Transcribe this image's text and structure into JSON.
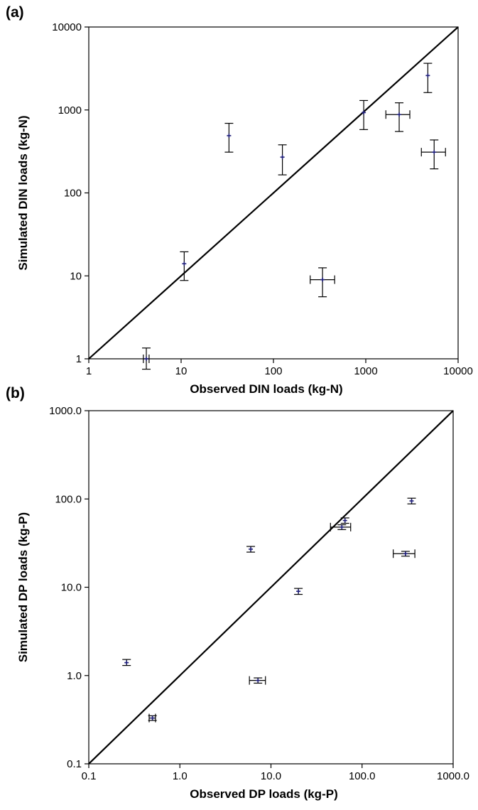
{
  "chart_data": [
    {
      "panel": "(a)",
      "type": "scatter",
      "xlabel": "Observed DIN loads (kg-N)",
      "ylabel": "Simulated DIN loads (kg-N)",
      "xscale": "log",
      "yscale": "log",
      "xlim": [
        1,
        10000
      ],
      "ylim": [
        1,
        10000
      ],
      "xticks": [
        "1",
        "10",
        "100",
        "1000",
        "10000"
      ],
      "yticks": [
        "1",
        "10",
        "100",
        "1000",
        "10000"
      ],
      "reference_line": "1:1",
      "marker_color": "#1f1f7a",
      "points": [
        {
          "x": 4.2,
          "y": 1.0,
          "x_err": [
            3.9,
            4.5
          ],
          "y_err": [
            0.75,
            1.35
          ]
        },
        {
          "x": 10.8,
          "y": 14,
          "x_err": null,
          "y_err": [
            8.8,
            19.5
          ]
        },
        {
          "x": 33,
          "y": 490,
          "x_err": null,
          "y_err": [
            310,
            690
          ]
        },
        {
          "x": 125,
          "y": 270,
          "x_err": null,
          "y_err": [
            165,
            380
          ]
        },
        {
          "x": 340,
          "y": 9,
          "x_err": [
            250,
            460
          ],
          "y_err": [
            5.6,
            12.5
          ]
        },
        {
          "x": 950,
          "y": 930,
          "x_err": null,
          "y_err": [
            580,
            1300
          ]
        },
        {
          "x": 2300,
          "y": 880,
          "x_err": [
            1650,
            3000
          ],
          "y_err": [
            550,
            1220
          ]
        },
        {
          "x": 4700,
          "y": 2600,
          "x_err": null,
          "y_err": [
            1620,
            3650
          ]
        },
        {
          "x": 5500,
          "y": 310,
          "x_err": [
            4000,
            7300
          ],
          "y_err": [
            195,
            435
          ]
        }
      ]
    },
    {
      "panel": "(b)",
      "type": "scatter",
      "xlabel": "Observed DP loads (kg-P)",
      "ylabel": "Simulated DP loads (kg-P)",
      "xscale": "log",
      "yscale": "log",
      "xlim": [
        0.1,
        1000
      ],
      "ylim": [
        0.1,
        1000
      ],
      "xticks": [
        "0.1",
        "1.0",
        "10.0",
        "100.0",
        "1000.0"
      ],
      "yticks": [
        "0.1",
        "1.0",
        "10.0",
        "100.0",
        "1000.0"
      ],
      "reference_line": "1:1",
      "marker_color": "#1f1f7a",
      "points": [
        {
          "x": 0.26,
          "y": 1.4,
          "x_err": null,
          "y_err": [
            1.3,
            1.52
          ]
        },
        {
          "x": 0.5,
          "y": 0.33,
          "x_err": [
            0.46,
            0.54
          ],
          "y_err": [
            0.31,
            0.35
          ]
        },
        {
          "x": 6.0,
          "y": 27,
          "x_err": null,
          "y_err": [
            25,
            29
          ]
        },
        {
          "x": 7.2,
          "y": 0.88,
          "x_err": [
            5.8,
            8.7
          ],
          "y_err": [
            0.82,
            0.94
          ]
        },
        {
          "x": 20,
          "y": 9.0,
          "x_err": null,
          "y_err": [
            8.3,
            9.7
          ]
        },
        {
          "x": 60,
          "y": 48,
          "x_err": [
            45,
            75
          ],
          "y_err": [
            45,
            51
          ]
        },
        {
          "x": 65,
          "y": 57,
          "x_err": null,
          "y_err": [
            53,
            61
          ]
        },
        {
          "x": 300,
          "y": 24,
          "x_err": [
            220,
            380
          ],
          "y_err": [
            22.5,
            25.5
          ]
        },
        {
          "x": 350,
          "y": 95,
          "x_err": null,
          "y_err": [
            88,
            102
          ]
        }
      ]
    }
  ]
}
